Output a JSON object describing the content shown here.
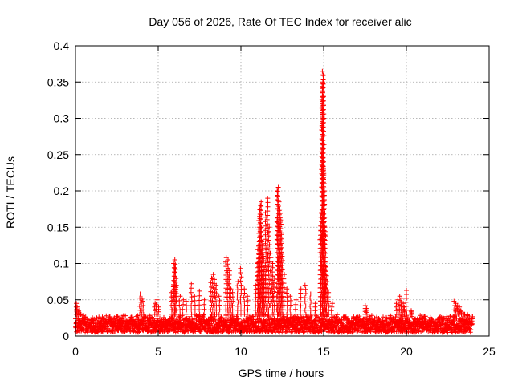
{
  "chart_data": {
    "type": "scatter",
    "title": "Day 056 of 2026, Rate Of TEC Index for receiver alic",
    "xlabel": "GPS time / hours",
    "ylabel": "ROTI / TECUs",
    "xlim": [
      0,
      25
    ],
    "ylim": [
      0,
      0.4
    ],
    "xticks": [
      0,
      5,
      10,
      15,
      20,
      25
    ],
    "yticks": [
      0,
      0.05,
      0.1,
      0.15,
      0.2,
      0.25,
      0.3,
      0.35,
      0.4
    ],
    "grid": true,
    "marker": "+",
    "colors": {
      "series": "#ff0000",
      "grid": "#a0a0a0",
      "axis": "#000000"
    },
    "series": [
      {
        "name": "ROTI",
        "baseline": {
          "x_start": 0,
          "x_end": 24,
          "step": 0.02,
          "low": 0.005,
          "high": 0.03
        },
        "x": [
          0.05,
          0.1,
          0.2,
          0.3,
          3.9,
          4.0,
          4.1,
          4.8,
          4.9,
          5.0,
          5.8,
          5.9,
          5.95,
          6.0,
          6.05,
          6.1,
          6.3,
          6.5,
          6.7,
          7.0,
          7.2,
          7.5,
          7.8,
          8.2,
          8.3,
          8.4,
          8.5,
          8.7,
          9.1,
          9.2,
          9.3,
          9.4,
          9.5,
          9.8,
          10.0,
          10.2,
          10.4,
          10.9,
          11.0,
          11.05,
          11.1,
          11.15,
          11.2,
          11.25,
          11.3,
          11.35,
          11.4,
          11.5,
          11.6,
          11.7,
          11.8,
          11.9,
          12.0,
          12.2,
          12.25,
          12.3,
          12.35,
          12.4,
          12.45,
          12.5,
          12.6,
          12.8,
          13.0,
          13.3,
          13.6,
          13.9,
          14.2,
          14.5,
          14.8,
          14.85,
          14.9,
          14.92,
          14.95,
          14.97,
          15.0,
          15.02,
          15.05,
          15.1,
          15.15,
          15.2,
          15.3,
          15.5,
          17.5,
          17.6,
          19.4,
          19.5,
          19.6,
          19.7,
          19.8,
          19.9,
          20.0,
          20.3,
          22.9,
          23.0,
          23.1,
          23.2,
          23.3,
          23.5,
          23.7
        ],
        "y": [
          0.045,
          0.04,
          0.035,
          0.03,
          0.058,
          0.052,
          0.048,
          0.045,
          0.05,
          0.04,
          0.06,
          0.068,
          0.1,
          0.105,
          0.098,
          0.07,
          0.055,
          0.05,
          0.048,
          0.072,
          0.055,
          0.062,
          0.05,
          0.08,
          0.085,
          0.078,
          0.07,
          0.055,
          0.108,
          0.105,
          0.09,
          0.065,
          0.06,
          0.075,
          0.093,
          0.065,
          0.055,
          0.07,
          0.1,
          0.125,
          0.165,
          0.18,
          0.185,
          0.15,
          0.13,
          0.11,
          0.095,
          0.17,
          0.19,
          0.15,
          0.12,
          0.1,
          0.08,
          0.2,
          0.205,
          0.185,
          0.175,
          0.16,
          0.14,
          0.11,
          0.085,
          0.065,
          0.055,
          0.05,
          0.065,
          0.07,
          0.058,
          0.045,
          0.145,
          0.17,
          0.29,
          0.35,
          0.365,
          0.36,
          0.33,
          0.23,
          0.2,
          0.15,
          0.095,
          0.075,
          0.06,
          0.045,
          0.042,
          0.038,
          0.045,
          0.05,
          0.055,
          0.052,
          0.045,
          0.04,
          0.063,
          0.035,
          0.048,
          0.045,
          0.042,
          0.04,
          0.035,
          0.03,
          0.028
        ]
      }
    ]
  }
}
